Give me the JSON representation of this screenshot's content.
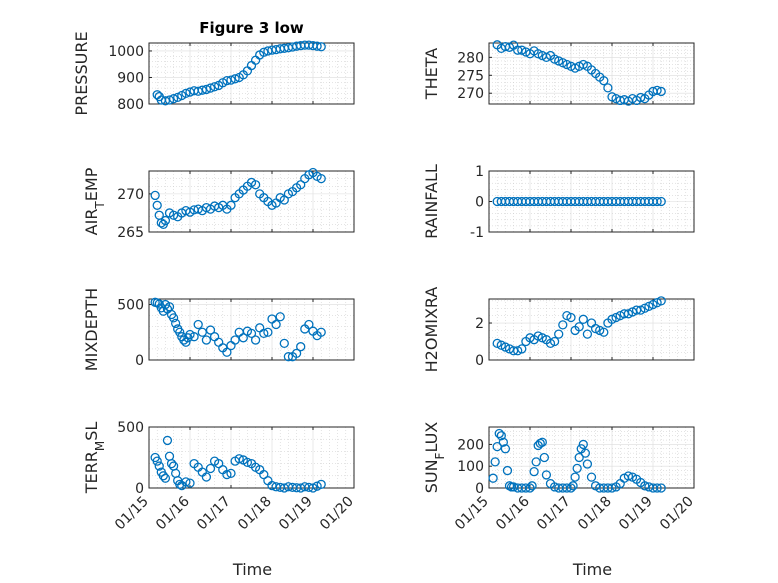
{
  "chart_data": {
    "type": "scatter",
    "title": "Figure 3 low",
    "xlabel": "Time",
    "colors": {
      "marker": "#0072BD",
      "axis": "#262626"
    },
    "x_ticks": [
      "01/15",
      "01/16",
      "01/17",
      "01/18",
      "01/19",
      "01/20"
    ],
    "x_range": [
      0,
      5
    ],
    "panels": [
      {
        "name": "PRESSURE",
        "ylabel": "PRESSURE",
        "ylim": [
          800,
          1030
        ],
        "ytick_values": [
          800,
          900,
          1000
        ],
        "ytick_labels": [
          "800",
          "900",
          "1000"
        ],
        "title": "Figure 3 low",
        "x": [
          0.2,
          0.25,
          0.3,
          0.4,
          0.5,
          0.6,
          0.7,
          0.8,
          0.9,
          1.0,
          1.1,
          1.2,
          1.3,
          1.4,
          1.5,
          1.6,
          1.7,
          1.8,
          1.9,
          2.0,
          2.1,
          2.2,
          2.3,
          2.4,
          2.5,
          2.6,
          2.7,
          2.8,
          2.9,
          3.0,
          3.1,
          3.2,
          3.3,
          3.4,
          3.5,
          3.6,
          3.7,
          3.8,
          3.9,
          4.0,
          4.1,
          4.2
        ],
        "values": [
          835,
          828,
          815,
          812,
          815,
          820,
          825,
          832,
          840,
          845,
          850,
          848,
          852,
          855,
          860,
          865,
          870,
          880,
          888,
          890,
          895,
          900,
          910,
          925,
          945,
          965,
          985,
          995,
          1000,
          1003,
          1005,
          1008,
          1010,
          1012,
          1015,
          1018,
          1020,
          1022,
          1022,
          1020,
          1018,
          1016
        ]
      },
      {
        "name": "THETA",
        "ylabel": "THETA",
        "ylim": [
          267,
          284
        ],
        "ytick_values": [
          270,
          275,
          280
        ],
        "ytick_labels": [
          "270",
          "275",
          "280"
        ],
        "x": [
          0.2,
          0.3,
          0.4,
          0.5,
          0.6,
          0.7,
          0.8,
          0.9,
          1.0,
          1.1,
          1.2,
          1.3,
          1.4,
          1.5,
          1.6,
          1.7,
          1.8,
          1.9,
          2.0,
          2.1,
          2.2,
          2.3,
          2.4,
          2.5,
          2.6,
          2.7,
          2.8,
          2.9,
          3.0,
          3.1,
          3.2,
          3.3,
          3.4,
          3.5,
          3.6,
          3.7,
          3.8,
          3.9,
          4.0,
          4.1,
          4.2
        ],
        "values": [
          283.5,
          282.5,
          283.0,
          282.8,
          283.4,
          282.0,
          282.0,
          281.5,
          281.0,
          281.8,
          281.0,
          280.5,
          280.0,
          280.5,
          279.5,
          279.0,
          278.5,
          278.0,
          277.5,
          277.0,
          277.5,
          278.0,
          277.5,
          276.5,
          275.5,
          274.5,
          273.5,
          271.5,
          269.0,
          268.5,
          268.0,
          268.2,
          267.8,
          268.5,
          268.0,
          268.8,
          268.5,
          269.5,
          270.5,
          270.8,
          270.5
        ]
      },
      {
        "name": "AIR_TEMP",
        "ylabel": "AIR_TEMP",
        "ylim": [
          265,
          273
        ],
        "ytick_values": [
          265,
          270
        ],
        "ytick_labels": [
          "265",
          "270"
        ],
        "x": [
          0.15,
          0.2,
          0.25,
          0.3,
          0.35,
          0.4,
          0.5,
          0.6,
          0.7,
          0.8,
          0.9,
          1.0,
          1.1,
          1.2,
          1.3,
          1.4,
          1.5,
          1.6,
          1.7,
          1.8,
          1.9,
          2.0,
          2.1,
          2.2,
          2.3,
          2.4,
          2.5,
          2.6,
          2.7,
          2.8,
          2.9,
          3.0,
          3.1,
          3.2,
          3.3,
          3.4,
          3.5,
          3.6,
          3.7,
          3.8,
          3.9,
          4.0,
          4.1,
          4.2
        ],
        "values": [
          269.8,
          268.5,
          267.2,
          266.2,
          266.0,
          266.5,
          267.5,
          267.2,
          267.0,
          267.5,
          267.8,
          267.6,
          267.9,
          268.0,
          267.8,
          268.2,
          268.0,
          268.4,
          268.2,
          268.5,
          268.0,
          268.5,
          269.5,
          270.0,
          270.5,
          271.0,
          271.5,
          271.2,
          270.0,
          269.5,
          269.0,
          268.5,
          268.8,
          269.5,
          269.2,
          270.0,
          270.3,
          270.8,
          271.2,
          272.0,
          272.5,
          272.8,
          272.3,
          272.0
        ]
      },
      {
        "name": "RAINFALL",
        "ylabel": "RAINFALL",
        "ylim": [
          -1,
          1
        ],
        "ytick_values": [
          -1,
          0,
          1
        ],
        "ytick_labels": [
          "-1",
          "0",
          "1"
        ],
        "x": [
          0.2,
          0.3,
          0.4,
          0.5,
          0.6,
          0.7,
          0.8,
          0.9,
          1.0,
          1.1,
          1.2,
          1.3,
          1.4,
          1.5,
          1.6,
          1.7,
          1.8,
          1.9,
          2.0,
          2.1,
          2.2,
          2.3,
          2.4,
          2.5,
          2.6,
          2.7,
          2.8,
          2.9,
          3.0,
          3.1,
          3.2,
          3.3,
          3.4,
          3.5,
          3.6,
          3.7,
          3.8,
          3.9,
          4.0,
          4.1,
          4.2
        ],
        "values": [
          0,
          0,
          0,
          0,
          0,
          0,
          0,
          0,
          0,
          0,
          0,
          0,
          0,
          0,
          0,
          0,
          0,
          0,
          0,
          0,
          0,
          0,
          0,
          0,
          0,
          0,
          0,
          0,
          0,
          0,
          0,
          0,
          0,
          0,
          0,
          0,
          0,
          0,
          0,
          0,
          0
        ]
      },
      {
        "name": "MIXDEPTH",
        "ylabel": "MIXDEPTH",
        "ylim": [
          0,
          550
        ],
        "ytick_values": [
          0,
          500
        ],
        "ytick_labels": [
          "0",
          "500"
        ],
        "x": [
          0.15,
          0.2,
          0.25,
          0.3,
          0.35,
          0.4,
          0.45,
          0.5,
          0.55,
          0.6,
          0.65,
          0.7,
          0.75,
          0.8,
          0.85,
          0.9,
          0.95,
          1.0,
          1.1,
          1.2,
          1.3,
          1.4,
          1.5,
          1.6,
          1.7,
          1.8,
          1.9,
          2.0,
          2.1,
          2.2,
          2.3,
          2.4,
          2.5,
          2.6,
          2.7,
          2.8,
          2.9,
          3.0,
          3.1,
          3.2,
          3.3,
          3.4,
          3.5,
          3.6,
          3.7,
          3.8,
          3.9,
          4.0,
          4.1,
          4.2
        ],
        "values": [
          520,
          515,
          505,
          470,
          440,
          500,
          460,
          480,
          410,
          380,
          330,
          280,
          250,
          210,
          180,
          160,
          200,
          230,
          210,
          320,
          250,
          180,
          270,
          210,
          160,
          110,
          70,
          130,
          180,
          250,
          200,
          260,
          240,
          180,
          290,
          240,
          250,
          370,
          320,
          390,
          150,
          30,
          30,
          60,
          120,
          280,
          320,
          260,
          220,
          250
        ]
      },
      {
        "name": "H2OMIXRA",
        "ylabel": "H2OMIXRA",
        "ylim": [
          0,
          3.3
        ],
        "ytick_values": [
          0,
          2
        ],
        "ytick_labels": [
          "0",
          "2"
        ],
        "x": [
          0.2,
          0.3,
          0.4,
          0.5,
          0.6,
          0.7,
          0.8,
          0.9,
          1.0,
          1.1,
          1.2,
          1.3,
          1.4,
          1.5,
          1.6,
          1.7,
          1.8,
          1.9,
          2.0,
          2.1,
          2.2,
          2.3,
          2.4,
          2.5,
          2.6,
          2.7,
          2.8,
          2.9,
          3.0,
          3.1,
          3.2,
          3.3,
          3.4,
          3.5,
          3.6,
          3.7,
          3.8,
          3.9,
          4.0,
          4.1,
          4.2
        ],
        "values": [
          0.9,
          0.8,
          0.7,
          0.6,
          0.5,
          0.5,
          0.6,
          1.0,
          1.2,
          1.1,
          1.3,
          1.2,
          1.1,
          0.9,
          1.0,
          1.4,
          1.9,
          2.4,
          2.3,
          1.6,
          1.8,
          2.2,
          1.4,
          2.0,
          1.7,
          1.6,
          1.5,
          2.0,
          2.2,
          2.3,
          2.4,
          2.5,
          2.5,
          2.6,
          2.7,
          2.7,
          2.8,
          2.9,
          3.0,
          3.1,
          3.2
        ]
      },
      {
        "name": "TERR_MSL",
        "ylabel": "TERR_MSL",
        "ylim": [
          0,
          500
        ],
        "ytick_values": [
          0,
          500
        ],
        "ytick_labels": [
          "0",
          "500"
        ],
        "x": [
          0.15,
          0.2,
          0.25,
          0.3,
          0.35,
          0.4,
          0.45,
          0.5,
          0.55,
          0.6,
          0.65,
          0.7,
          0.75,
          0.8,
          0.9,
          1.0,
          1.1,
          1.2,
          1.3,
          1.4,
          1.5,
          1.6,
          1.7,
          1.8,
          1.9,
          2.0,
          2.1,
          2.2,
          2.3,
          2.4,
          2.5,
          2.6,
          2.7,
          2.8,
          2.9,
          3.0,
          3.1,
          3.2,
          3.3,
          3.4,
          3.5,
          3.6,
          3.7,
          3.8,
          3.9,
          4.0,
          4.1,
          4.2
        ],
        "values": [
          250,
          220,
          180,
          130,
          100,
          80,
          390,
          260,
          200,
          180,
          120,
          60,
          30,
          20,
          50,
          40,
          200,
          170,
          130,
          90,
          160,
          220,
          200,
          150,
          110,
          120,
          220,
          240,
          230,
          210,
          200,
          170,
          150,
          110,
          60,
          20,
          10,
          5,
          0,
          10,
          5,
          2,
          0,
          10,
          5,
          0,
          15,
          30
        ]
      },
      {
        "name": "SUN_FLUX",
        "ylabel": "SUN_FLUX",
        "ylim": [
          0,
          280
        ],
        "ytick_values": [
          0,
          100,
          200
        ],
        "ytick_labels": [
          "0",
          "100",
          "200"
        ],
        "x": [
          0.1,
          0.15,
          0.2,
          0.25,
          0.3,
          0.35,
          0.4,
          0.45,
          0.5,
          0.55,
          0.6,
          0.7,
          0.8,
          0.9,
          1.0,
          1.05,
          1.1,
          1.15,
          1.2,
          1.25,
          1.3,
          1.35,
          1.4,
          1.5,
          1.6,
          1.7,
          1.8,
          1.9,
          2.0,
          2.05,
          2.1,
          2.15,
          2.2,
          2.25,
          2.3,
          2.35,
          2.4,
          2.5,
          2.6,
          2.7,
          2.8,
          2.9,
          3.0,
          3.1,
          3.2,
          3.3,
          3.4,
          3.5,
          3.6,
          3.7,
          3.8,
          3.9,
          4.0,
          4.1,
          4.2
        ],
        "values": [
          45,
          120,
          190,
          250,
          240,
          210,
          180,
          80,
          10,
          5,
          5,
          0,
          0,
          0,
          0,
          10,
          75,
          120,
          195,
          205,
          210,
          140,
          60,
          20,
          5,
          0,
          0,
          0,
          0,
          10,
          50,
          90,
          140,
          180,
          200,
          160,
          110,
          50,
          10,
          0,
          0,
          0,
          0,
          5,
          20,
          45,
          55,
          50,
          40,
          25,
          10,
          5,
          0,
          0,
          0
        ]
      }
    ]
  }
}
